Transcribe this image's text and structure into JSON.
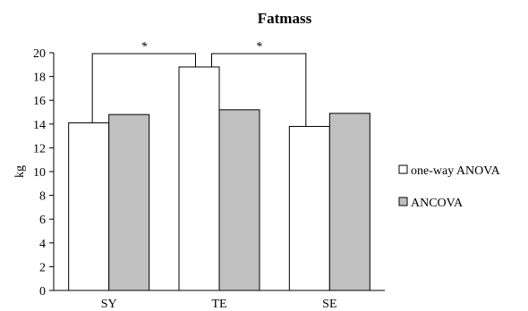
{
  "chart_data": {
    "type": "bar",
    "title": "Fatmass",
    "xlabel": "",
    "ylabel": "kg",
    "ylim": [
      0,
      20
    ],
    "yticks": [
      "0",
      "2",
      "4",
      "6",
      "8",
      "10",
      "12",
      "14",
      "16",
      "18",
      "20"
    ],
    "categories": [
      "SY",
      "TE",
      "SE"
    ],
    "series": [
      {
        "name": "one-way ANOVA",
        "values": [
          14.1,
          18.8,
          13.8
        ],
        "color": "#ffffff"
      },
      {
        "name": "ANCOVA",
        "values": [
          14.8,
          15.2,
          14.9
        ],
        "color": "#c0c0c0"
      }
    ],
    "legend_position": "right",
    "grid": false,
    "significance": [
      {
        "label": "*",
        "from": "SY",
        "to": "TE"
      },
      {
        "label": "*",
        "from": "TE",
        "to": "SE"
      }
    ]
  }
}
